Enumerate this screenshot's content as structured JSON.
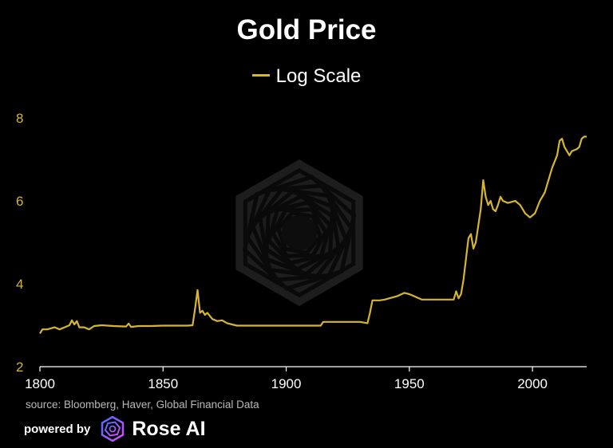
{
  "header": {
    "title": "Gold Price"
  },
  "legend": {
    "label": "Log Scale",
    "color": "#d6b531"
  },
  "footer": {
    "source": "source: Bloomberg, Haver, Global Financial Data",
    "powered_by": "powered by",
    "brand": "Rose AI"
  },
  "colors": {
    "background": "#000000",
    "line": "#d6b531",
    "axis_text": "#d6b531",
    "x_axis_text": "#ffffff",
    "watermark": "#2a2a2a"
  },
  "chart_data": {
    "type": "line",
    "title": "Gold Price",
    "xlabel": "",
    "ylabel": "",
    "xlim": [
      1800,
      2022
    ],
    "ylim": [
      2,
      8
    ],
    "x_ticks": [
      1800,
      1850,
      1900,
      1950,
      2000
    ],
    "y_ticks": [
      2,
      4,
      6,
      8
    ],
    "grid": false,
    "legend_position": "top-center",
    "series": [
      {
        "name": "Log Scale",
        "x": [
          1800,
          1801,
          1803,
          1806,
          1808,
          1810,
          1812,
          1813,
          1814,
          1815,
          1816,
          1818,
          1820,
          1822,
          1825,
          1830,
          1835,
          1836,
          1837,
          1840,
          1845,
          1850,
          1855,
          1860,
          1862,
          1863,
          1864,
          1865,
          1866,
          1867,
          1868,
          1870,
          1872,
          1874,
          1876,
          1878,
          1880,
          1890,
          1900,
          1910,
          1914,
          1915,
          1920,
          1925,
          1930,
          1933,
          1934,
          1935,
          1938,
          1940,
          1945,
          1948,
          1950,
          1952,
          1955,
          1960,
          1965,
          1968,
          1969,
          1970,
          1971,
          1972,
          1973,
          1974,
          1975,
          1976,
          1977,
          1978,
          1979,
          1980,
          1981,
          1982,
          1983,
          1984,
          1985,
          1986,
          1987,
          1988,
          1990,
          1993,
          1995,
          1997,
          1999,
          2001,
          2003,
          2005,
          2006,
          2008,
          2010,
          2011,
          2012,
          2013,
          2014,
          2015,
          2016,
          2018,
          2019,
          2020,
          2021,
          2022
        ],
        "y": [
          2.8,
          2.9,
          2.9,
          2.95,
          2.9,
          2.95,
          3.0,
          3.12,
          3.02,
          3.1,
          2.95,
          2.95,
          2.9,
          2.98,
          3.0,
          2.98,
          2.97,
          3.04,
          2.96,
          2.98,
          2.98,
          2.99,
          2.99,
          2.99,
          3.0,
          3.4,
          3.85,
          3.3,
          3.35,
          3.25,
          3.3,
          3.15,
          3.1,
          3.12,
          3.05,
          3.02,
          2.99,
          2.99,
          2.99,
          2.99,
          2.99,
          3.08,
          3.08,
          3.08,
          3.08,
          3.05,
          3.3,
          3.6,
          3.6,
          3.62,
          3.7,
          3.78,
          3.75,
          3.7,
          3.62,
          3.62,
          3.62,
          3.62,
          3.82,
          3.65,
          3.75,
          4.1,
          4.6,
          5.1,
          5.2,
          4.85,
          5.0,
          5.4,
          5.8,
          6.5,
          6.1,
          5.9,
          6.0,
          5.8,
          5.75,
          5.9,
          6.1,
          6.0,
          5.95,
          6.0,
          5.9,
          5.7,
          5.6,
          5.7,
          6.0,
          6.2,
          6.4,
          6.8,
          7.1,
          7.45,
          7.5,
          7.3,
          7.2,
          7.1,
          7.2,
          7.25,
          7.3,
          7.5,
          7.55,
          7.55
        ]
      }
    ]
  }
}
